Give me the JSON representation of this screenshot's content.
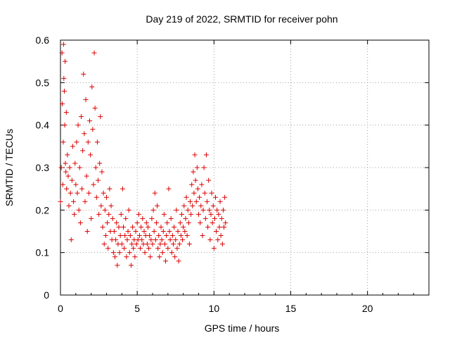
{
  "chart_data": {
    "type": "scatter",
    "title": "Day 219 of 2022, SRMTID for receiver pohn",
    "xlabel": "GPS time / hours",
    "ylabel": "SRMTID / TECUs",
    "xlim": [
      0,
      24
    ],
    "ylim": [
      0,
      0.6
    ],
    "xticks": [
      0,
      5,
      10,
      15,
      20
    ],
    "yticks": [
      0,
      0.1,
      0.2,
      0.3,
      0.4,
      0.5,
      0.6
    ],
    "xtick_labels": [
      "0",
      "5",
      "10",
      "15",
      "20"
    ],
    "ytick_labels": [
      "0",
      "0.1",
      "0.2",
      "0.3",
      "0.4",
      "0.5",
      "0.6"
    ],
    "grid": true,
    "marker": "+",
    "color": "#dd0000",
    "series": [
      {
        "name": "SRMTID",
        "points": [
          [
            0.0,
            0.22
          ],
          [
            0.05,
            0.3
          ],
          [
            0.1,
            0.57
          ],
          [
            0.12,
            0.45
          ],
          [
            0.15,
            0.26
          ],
          [
            0.18,
            0.36
          ],
          [
            0.2,
            0.59
          ],
          [
            0.22,
            0.51
          ],
          [
            0.25,
            0.48
          ],
          [
            0.28,
            0.4
          ],
          [
            0.3,
            0.55
          ],
          [
            0.32,
            0.31
          ],
          [
            0.35,
            0.29
          ],
          [
            0.38,
            0.43
          ],
          [
            0.4,
            0.25
          ],
          [
            0.45,
            0.33
          ],
          [
            0.5,
            0.28
          ],
          [
            0.55,
            0.21
          ],
          [
            0.6,
            0.3
          ],
          [
            0.65,
            0.24
          ],
          [
            0.7,
            0.13
          ],
          [
            0.75,
            0.27
          ],
          [
            0.8,
            0.35
          ],
          [
            0.85,
            0.22
          ],
          [
            0.9,
            0.19
          ],
          [
            0.95,
            0.31
          ],
          [
            1.0,
            0.26
          ],
          [
            1.05,
            0.36
          ],
          [
            1.1,
            0.24
          ],
          [
            1.15,
            0.4
          ],
          [
            1.2,
            0.2
          ],
          [
            1.25,
            0.3
          ],
          [
            1.3,
            0.17
          ],
          [
            1.35,
            0.42
          ],
          [
            1.4,
            0.25
          ],
          [
            1.45,
            0.34
          ],
          [
            1.5,
            0.52
          ],
          [
            1.55,
            0.38
          ],
          [
            1.6,
            0.22
          ],
          [
            1.65,
            0.46
          ],
          [
            1.7,
            0.28
          ],
          [
            1.75,
            0.15
          ],
          [
            1.8,
            0.36
          ],
          [
            1.85,
            0.24
          ],
          [
            1.9,
            0.41
          ],
          [
            1.95,
            0.33
          ],
          [
            2.0,
            0.18
          ],
          [
            2.05,
            0.49
          ],
          [
            2.1,
            0.39
          ],
          [
            2.15,
            0.26
          ],
          [
            2.2,
            0.57
          ],
          [
            2.25,
            0.44
          ],
          [
            2.3,
            0.3
          ],
          [
            2.35,
            0.23
          ],
          [
            2.4,
            0.36
          ],
          [
            2.45,
            0.27
          ],
          [
            2.5,
            0.19
          ],
          [
            2.55,
            0.31
          ],
          [
            2.6,
            0.42
          ],
          [
            2.65,
            0.21
          ],
          [
            2.7,
            0.29
          ],
          [
            2.75,
            0.16
          ],
          [
            2.8,
            0.24
          ],
          [
            2.85,
            0.12
          ],
          [
            2.9,
            0.2
          ],
          [
            2.95,
            0.14
          ],
          [
            3.0,
            0.23
          ],
          [
            3.05,
            0.17
          ],
          [
            3.1,
            0.11
          ],
          [
            3.15,
            0.19
          ],
          [
            3.2,
            0.25
          ],
          [
            3.25,
            0.15
          ],
          [
            3.3,
            0.21
          ],
          [
            3.35,
            0.13
          ],
          [
            3.4,
            0.18
          ],
          [
            3.45,
            0.1
          ],
          [
            3.5,
            0.15
          ],
          [
            3.55,
            0.09
          ],
          [
            3.6,
            0.13
          ],
          [
            3.65,
            0.17
          ],
          [
            3.7,
            0.07
          ],
          [
            3.75,
            0.12
          ],
          [
            3.8,
            0.16
          ],
          [
            3.85,
            0.1
          ],
          [
            3.9,
            0.14
          ],
          [
            3.95,
            0.19
          ],
          [
            4.0,
            0.12
          ],
          [
            4.05,
            0.25
          ],
          [
            4.1,
            0.16
          ],
          [
            4.15,
            0.11
          ],
          [
            4.2,
            0.14
          ],
          [
            4.25,
            0.18
          ],
          [
            4.3,
            0.09
          ],
          [
            4.35,
            0.13
          ],
          [
            4.4,
            0.15
          ],
          [
            4.45,
            0.2
          ],
          [
            4.5,
            0.1
          ],
          [
            4.55,
            0.14
          ],
          [
            4.6,
            0.07
          ],
          [
            4.65,
            0.12
          ],
          [
            4.7,
            0.16
          ],
          [
            4.75,
            0.11
          ],
          [
            4.8,
            0.13
          ],
          [
            4.85,
            0.09
          ],
          [
            4.9,
            0.15
          ],
          [
            4.95,
            0.12
          ],
          [
            5.0,
            0.17
          ],
          [
            5.05,
            0.13
          ],
          [
            5.1,
            0.19
          ],
          [
            5.15,
            0.14
          ],
          [
            5.2,
            0.11
          ],
          [
            5.25,
            0.16
          ],
          [
            5.3,
            0.13
          ],
          [
            5.35,
            0.18
          ],
          [
            5.4,
            0.12
          ],
          [
            5.45,
            0.15
          ],
          [
            5.5,
            0.1
          ],
          [
            5.55,
            0.14
          ],
          [
            5.6,
            0.17
          ],
          [
            5.65,
            0.12
          ],
          [
            5.7,
            0.16
          ],
          [
            5.75,
            0.11
          ],
          [
            5.8,
            0.14
          ],
          [
            5.85,
            0.09
          ],
          [
            5.9,
            0.13
          ],
          [
            5.95,
            0.18
          ],
          [
            6.0,
            0.12
          ],
          [
            6.05,
            0.2
          ],
          [
            6.1,
            0.15
          ],
          [
            6.15,
            0.24
          ],
          [
            6.2,
            0.13
          ],
          [
            6.25,
            0.17
          ],
          [
            6.3,
            0.21
          ],
          [
            6.35,
            0.11
          ],
          [
            6.4,
            0.14
          ],
          [
            6.45,
            0.09
          ],
          [
            6.5,
            0.12
          ],
          [
            6.55,
            0.16
          ],
          [
            6.6,
            0.13
          ],
          [
            6.65,
            0.1
          ],
          [
            6.7,
            0.15
          ],
          [
            6.75,
            0.19
          ],
          [
            6.8,
            0.12
          ],
          [
            6.85,
            0.08
          ],
          [
            6.9,
            0.14
          ],
          [
            6.95,
            0.17
          ],
          [
            7.0,
            0.11
          ],
          [
            7.05,
            0.25
          ],
          [
            7.1,
            0.15
          ],
          [
            7.15,
            0.13
          ],
          [
            7.2,
            0.18
          ],
          [
            7.25,
            0.1
          ],
          [
            7.3,
            0.14
          ],
          [
            7.35,
            0.12
          ],
          [
            7.4,
            0.16
          ],
          [
            7.45,
            0.09
          ],
          [
            7.5,
            0.13
          ],
          [
            7.55,
            0.2
          ],
          [
            7.6,
            0.11
          ],
          [
            7.65,
            0.15
          ],
          [
            7.7,
            0.08
          ],
          [
            7.75,
            0.12
          ],
          [
            7.8,
            0.17
          ],
          [
            7.85,
            0.14
          ],
          [
            7.9,
            0.19
          ],
          [
            7.95,
            0.13
          ],
          [
            8.0,
            0.16
          ],
          [
            8.05,
            0.21
          ],
          [
            8.1,
            0.15
          ],
          [
            8.15,
            0.18
          ],
          [
            8.2,
            0.23
          ],
          [
            8.25,
            0.14
          ],
          [
            8.3,
            0.2
          ],
          [
            8.35,
            0.17
          ],
          [
            8.4,
            0.12
          ],
          [
            8.45,
            0.22
          ],
          [
            8.5,
            0.19
          ],
          [
            8.55,
            0.26
          ],
          [
            8.6,
            0.21
          ],
          [
            8.65,
            0.29
          ],
          [
            8.7,
            0.24
          ],
          [
            8.75,
            0.33
          ],
          [
            8.8,
            0.27
          ],
          [
            8.85,
            0.22
          ],
          [
            8.9,
            0.3
          ],
          [
            8.95,
            0.25
          ],
          [
            9.0,
            0.19
          ],
          [
            9.05,
            0.23
          ],
          [
            9.1,
            0.17
          ],
          [
            9.15,
            0.21
          ],
          [
            9.2,
            0.26
          ],
          [
            9.25,
            0.14
          ],
          [
            9.3,
            0.2
          ],
          [
            9.35,
            0.3
          ],
          [
            9.4,
            0.24
          ],
          [
            9.45,
            0.18
          ],
          [
            9.5,
            0.33
          ],
          [
            9.55,
            0.22
          ],
          [
            9.6,
            0.16
          ],
          [
            9.65,
            0.27
          ],
          [
            9.7,
            0.2
          ],
          [
            9.75,
            0.13
          ],
          [
            9.8,
            0.19
          ],
          [
            9.85,
            0.24
          ],
          [
            9.9,
            0.17
          ],
          [
            9.95,
            0.21
          ],
          [
            10.0,
            0.11
          ],
          [
            10.05,
            0.18
          ],
          [
            10.1,
            0.23
          ],
          [
            10.15,
            0.15
          ],
          [
            10.2,
            0.2
          ],
          [
            10.25,
            0.13
          ],
          [
            10.3,
            0.19
          ],
          [
            10.35,
            0.16
          ],
          [
            10.4,
            0.22
          ],
          [
            10.45,
            0.14
          ],
          [
            10.5,
            0.18
          ],
          [
            10.55,
            0.12
          ],
          [
            10.6,
            0.2
          ],
          [
            10.65,
            0.16
          ],
          [
            10.7,
            0.23
          ],
          [
            10.75,
            0.17
          ]
        ]
      }
    ]
  }
}
